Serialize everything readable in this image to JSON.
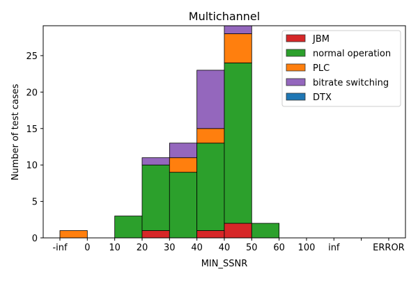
{
  "chart_data": {
    "type": "bar",
    "stacked": true,
    "title": "Multichannel",
    "xlabel": "MIN_SSNR",
    "ylabel": "Number of test cases",
    "x_tick_labels": [
      "-inf",
      "0",
      "10",
      "20",
      "30",
      "40",
      "40",
      "50",
      "60",
      "100",
      "inf",
      "",
      "ERROR"
    ],
    "y_ticks": [
      0,
      5,
      10,
      15,
      20,
      25
    ],
    "ylim": [
      0,
      29.1
    ],
    "legend_position": "top-right",
    "series": [
      {
        "name": "JBM",
        "color": "#d62728",
        "values": [
          0,
          0,
          0,
          1,
          0,
          1,
          2,
          0,
          0,
          0,
          0,
          0
        ]
      },
      {
        "name": "normal operation",
        "color": "#2ca02c",
        "values": [
          0,
          0,
          3,
          9,
          9,
          12,
          22,
          2,
          0,
          0,
          0,
          0
        ]
      },
      {
        "name": "PLC",
        "color": "#ff7f0e",
        "values": [
          1,
          0,
          0,
          0,
          2,
          2,
          4,
          0,
          0,
          0,
          0,
          0
        ]
      },
      {
        "name": "bitrate switching",
        "color": "#9467bd",
        "values": [
          0,
          0,
          0,
          1,
          2,
          8,
          2,
          0,
          0,
          0,
          0,
          0
        ]
      },
      {
        "name": "DTX",
        "color": "#1f77b4",
        "values": [
          0,
          0,
          0,
          0,
          0,
          0,
          0,
          0,
          0,
          0,
          0,
          0
        ]
      }
    ]
  }
}
